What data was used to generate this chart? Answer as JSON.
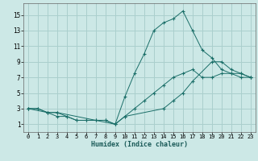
{
  "title": "",
  "xlabel": "Humidex (Indice chaleur)",
  "bg_color": "#cce8e6",
  "grid_color": "#aacfcd",
  "line_color": "#1a6e68",
  "xlim": [
    -0.5,
    23.5
  ],
  "ylim": [
    0,
    16.5
  ],
  "xticks": [
    0,
    1,
    2,
    3,
    4,
    5,
    6,
    7,
    8,
    9,
    10,
    11,
    12,
    13,
    14,
    15,
    16,
    17,
    18,
    19,
    20,
    21,
    22,
    23
  ],
  "yticks": [
    1,
    3,
    5,
    7,
    9,
    11,
    13,
    15
  ],
  "curve1_x": [
    0,
    1,
    2,
    3,
    4,
    5,
    6,
    7,
    8,
    9,
    10,
    11,
    12,
    13,
    14,
    15,
    16,
    17,
    18,
    19,
    20,
    21,
    22,
    23
  ],
  "curve1_y": [
    3,
    3,
    2.5,
    2.5,
    2,
    1.5,
    1.5,
    1.5,
    1.5,
    1,
    2,
    3,
    4,
    5,
    6,
    7,
    7.5,
    8,
    7,
    7,
    7.5,
    7.5,
    7.5,
    7
  ],
  "curve2_x": [
    0,
    1,
    2,
    3,
    4,
    5,
    6,
    7,
    8,
    9,
    10,
    11,
    12,
    13,
    14,
    15,
    16,
    17,
    18,
    19,
    20,
    21,
    22,
    23
  ],
  "curve2_y": [
    3,
    3,
    2.5,
    2,
    2,
    1.5,
    1.5,
    1.5,
    1.5,
    1,
    4.5,
    7.5,
    10,
    13,
    14,
    14.5,
    15.5,
    13,
    10.5,
    9.5,
    8,
    7.5,
    7,
    7
  ],
  "curve3_x": [
    0,
    2,
    3,
    9,
    10,
    14,
    15,
    16,
    17,
    19,
    20,
    21,
    22,
    23
  ],
  "curve3_y": [
    3,
    2.5,
    2.5,
    1,
    2,
    3,
    4,
    5,
    6.5,
    9,
    9,
    8,
    7.5,
    7
  ]
}
